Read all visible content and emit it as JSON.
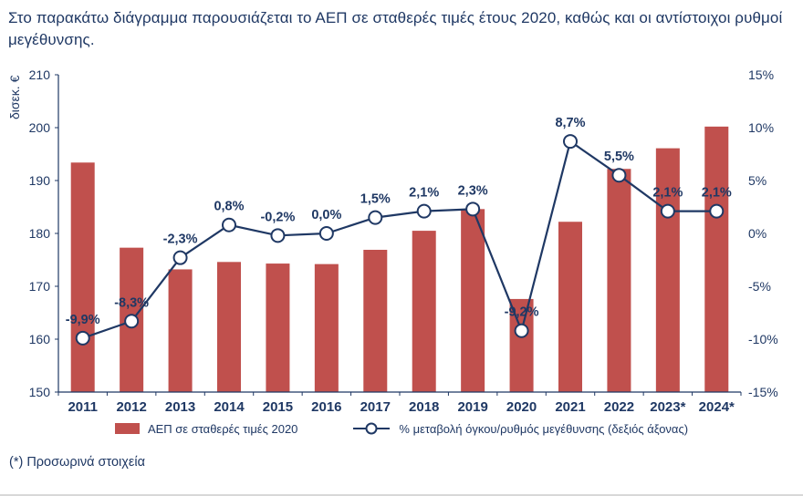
{
  "description": "Στο παρακάτω διάγραμμα παρουσιάζεται το ΑΕΠ σε σταθερές τιμές έτους 2020, καθώς και οι αντίστοιχοι ρυθμοί μεγέθυνσης.",
  "footnote": "(*) Προσωρινά στοιχεία",
  "chart_data": {
    "type": "bar",
    "subtype": "bar-line-combo",
    "categories": [
      "2011",
      "2012",
      "2013",
      "2014",
      "2015",
      "2016",
      "2017",
      "2018",
      "2019",
      "2020",
      "2021",
      "2022",
      "2023*",
      "2024*"
    ],
    "series": [
      {
        "name": "ΑΕΠ σε σταθερές τιμές 2020",
        "type": "bar",
        "axis": "left",
        "values": [
          193.4,
          177.3,
          173.2,
          174.6,
          174.3,
          174.2,
          176.9,
          180.5,
          184.6,
          167.6,
          182.2,
          192.2,
          196.1,
          200.2
        ]
      },
      {
        "name": "% μεταβολή όγκου/ρυθμός μεγέθυνσης (δεξιός άξονας)",
        "type": "line",
        "axis": "right",
        "values": [
          -9.9,
          -8.3,
          -2.3,
          0.8,
          -0.2,
          0.0,
          1.5,
          2.1,
          2.3,
          -9.2,
          8.7,
          5.5,
          2.1,
          2.1
        ],
        "labels": [
          "-9,9%",
          "-8,3%",
          "-2,3%",
          "0,8%",
          "-0,2%",
          "0,0%",
          "1,5%",
          "2,1%",
          "2,3%",
          "-9,2%",
          "8,7%",
          "5,5%",
          "2,1%",
          "2,1%"
        ]
      }
    ],
    "y_left": {
      "label": "δισεκ. €",
      "min": 150,
      "max": 210,
      "step": 10,
      "ticks": [
        "150",
        "160",
        "170",
        "180",
        "190",
        "200",
        "210"
      ]
    },
    "y_right": {
      "min": -15,
      "max": 15,
      "step": 5,
      "ticks": [
        "-15%",
        "-10%",
        "-5%",
        "0%",
        "5%",
        "10%",
        "15%"
      ]
    },
    "legend": [
      "ΑΕΠ σε σταθερές τιμές 2020",
      "% μεταβολή όγκου/ρυθμός μεγέθυνσης (δεξιός άξονας)"
    ],
    "legend_position": "bottom",
    "grid": false,
    "colors": {
      "bar": "#C0504D",
      "line": "#1F3864",
      "marker_fill": "#FFFFFF",
      "text": "#1F3864"
    }
  }
}
